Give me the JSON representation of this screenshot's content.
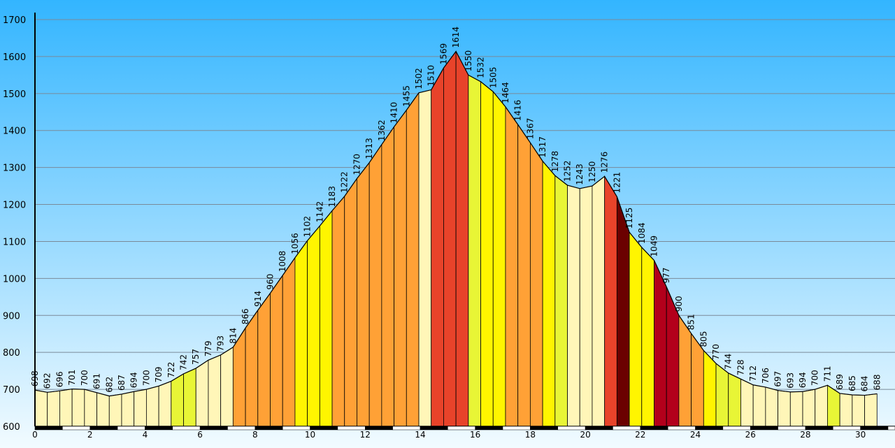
{
  "chart_data": {
    "type": "area",
    "title": "",
    "xlabel": "",
    "ylabel": "",
    "xlim": [
      0,
      31
    ],
    "ylim": [
      600,
      1700
    ],
    "grid": true,
    "y_ticks": [
      600,
      700,
      800,
      900,
      1000,
      1100,
      1200,
      1300,
      1400,
      1500,
      1600,
      1700
    ],
    "x_ticks": [
      0,
      2,
      4,
      6,
      8,
      10,
      12,
      14,
      16,
      18,
      20,
      22,
      24,
      26,
      28,
      30
    ],
    "points": [
      {
        "x": 0.0,
        "y": 698,
        "label": "698"
      },
      {
        "x": 0.45,
        "y": 692,
        "label": "692"
      },
      {
        "x": 0.9,
        "y": 696,
        "label": "696"
      },
      {
        "x": 1.35,
        "y": 701,
        "label": "701"
      },
      {
        "x": 1.8,
        "y": 700,
        "label": "700"
      },
      {
        "x": 2.25,
        "y": 691,
        "label": "691"
      },
      {
        "x": 2.7,
        "y": 682,
        "label": "682"
      },
      {
        "x": 3.15,
        "y": 687,
        "label": "687"
      },
      {
        "x": 3.6,
        "y": 694,
        "label": "694"
      },
      {
        "x": 4.05,
        "y": 700,
        "label": "700"
      },
      {
        "x": 4.5,
        "y": 709,
        "label": "709"
      },
      {
        "x": 4.95,
        "y": 722,
        "label": "722"
      },
      {
        "x": 5.4,
        "y": 742,
        "label": "742"
      },
      {
        "x": 5.85,
        "y": 757,
        "label": "757"
      },
      {
        "x": 6.3,
        "y": 779,
        "label": "779"
      },
      {
        "x": 6.75,
        "y": 793,
        "label": "793"
      },
      {
        "x": 7.2,
        "y": 814,
        "label": "814"
      },
      {
        "x": 7.65,
        "y": 866,
        "label": "866"
      },
      {
        "x": 8.1,
        "y": 914,
        "label": "914"
      },
      {
        "x": 8.55,
        "y": 960,
        "label": "960"
      },
      {
        "x": 9.0,
        "y": 1008,
        "label": "1008"
      },
      {
        "x": 9.45,
        "y": 1056,
        "label": "1056"
      },
      {
        "x": 9.9,
        "y": 1102,
        "label": "1102"
      },
      {
        "x": 10.35,
        "y": 1142,
        "label": "1142"
      },
      {
        "x": 10.8,
        "y": 1183,
        "label": "1183"
      },
      {
        "x": 11.25,
        "y": 1222,
        "label": "1222"
      },
      {
        "x": 11.7,
        "y": 1270,
        "label": "1270"
      },
      {
        "x": 12.15,
        "y": 1313,
        "label": "1313"
      },
      {
        "x": 12.6,
        "y": 1362,
        "label": "1362"
      },
      {
        "x": 13.05,
        "y": 1410,
        "label": "1410"
      },
      {
        "x": 13.5,
        "y": 1455,
        "label": "1455"
      },
      {
        "x": 13.95,
        "y": 1502,
        "label": "1502"
      },
      {
        "x": 14.4,
        "y": 1510,
        "label": "1510"
      },
      {
        "x": 14.85,
        "y": 1569,
        "label": "1569"
      },
      {
        "x": 15.3,
        "y": 1614,
        "label": "1614"
      },
      {
        "x": 15.75,
        "y": 1550,
        "label": "1550"
      },
      {
        "x": 16.2,
        "y": 1532,
        "label": "1532"
      },
      {
        "x": 16.65,
        "y": 1505,
        "label": "1505"
      },
      {
        "x": 17.1,
        "y": 1464,
        "label": "1464"
      },
      {
        "x": 17.55,
        "y": 1416,
        "label": "1416"
      },
      {
        "x": 18.0,
        "y": 1367,
        "label": "1367"
      },
      {
        "x": 18.45,
        "y": 1317,
        "label": "1317"
      },
      {
        "x": 18.9,
        "y": 1278,
        "label": "1278"
      },
      {
        "x": 19.35,
        "y": 1252,
        "label": "1252"
      },
      {
        "x": 19.8,
        "y": 1243,
        "label": "1243"
      },
      {
        "x": 20.25,
        "y": 1250,
        "label": "1250"
      },
      {
        "x": 20.7,
        "y": 1276,
        "label": "1276"
      },
      {
        "x": 21.15,
        "y": 1221,
        "label": "1221"
      },
      {
        "x": 21.6,
        "y": 1125,
        "label": "1125"
      },
      {
        "x": 22.05,
        "y": 1084,
        "label": "1084"
      },
      {
        "x": 22.5,
        "y": 1049,
        "label": "1049"
      },
      {
        "x": 22.95,
        "y": 977,
        "label": "977"
      },
      {
        "x": 23.4,
        "y": 900,
        "label": "900"
      },
      {
        "x": 23.85,
        "y": 851,
        "label": "851"
      },
      {
        "x": 24.3,
        "y": 805,
        "label": "805"
      },
      {
        "x": 24.75,
        "y": 770,
        "label": "770"
      },
      {
        "x": 25.2,
        "y": 744,
        "label": "744"
      },
      {
        "x": 25.65,
        "y": 728,
        "label": "728"
      },
      {
        "x": 26.1,
        "y": 712,
        "label": "712"
      },
      {
        "x": 26.55,
        "y": 706,
        "label": "706"
      },
      {
        "x": 27.0,
        "y": 697,
        "label": "697"
      },
      {
        "x": 27.45,
        "y": 693,
        "label": "693"
      },
      {
        "x": 27.9,
        "y": 694,
        "label": "694"
      },
      {
        "x": 28.35,
        "y": 700,
        "label": "700"
      },
      {
        "x": 28.8,
        "y": 711,
        "label": "711"
      },
      {
        "x": 29.25,
        "y": 689,
        "label": "689"
      },
      {
        "x": 29.7,
        "y": 685,
        "label": "685"
      },
      {
        "x": 30.15,
        "y": 684,
        "label": "684"
      },
      {
        "x": 30.6,
        "y": 688,
        "label": "688"
      }
    ],
    "segment_colors": [
      "#fff6b8",
      "#fff6b8",
      "#fff6b8",
      "#fff6b8",
      "#fff6b8",
      "#fff6b8",
      "#fff6b8",
      "#fff6b8",
      "#fff6b8",
      "#fff6b8",
      "#fff6b8",
      "#e8f536",
      "#e8f536",
      "#fff6b8",
      "#fff6b8",
      "#fff6b8",
      "#ffa136",
      "#ffa136",
      "#ffa136",
      "#ffa136",
      "#ffa136",
      "#fff500",
      "#fff500",
      "#fff500",
      "#ffa136",
      "#ffa136",
      "#ffa136",
      "#ffa136",
      "#ffa136",
      "#ffa136",
      "#ffa136",
      "#fff6b8",
      "#e8432a",
      "#e8432a",
      "#e8432a",
      "#e8f536",
      "#fff500",
      "#fff500",
      "#ffa136",
      "#ffa136",
      "#ffa136",
      "#fff500",
      "#e8f536",
      "#fff6b8",
      "#fff6b8",
      "#fff6b8",
      "#e8432a",
      "#6b0000",
      "#fff500",
      "#fff500",
      "#b3001b",
      "#b3001b",
      "#ffa136",
      "#ffa136",
      "#fff500",
      "#e8f536",
      "#e8f536",
      "#fff6b8",
      "#fff6b8",
      "#fff6b8",
      "#fff6b8",
      "#fff6b8",
      "#fff6b8",
      "#fff6b8",
      "#e8f536",
      "#fff6b8",
      "#fff6b8",
      "#fff6b8"
    ],
    "colors": {
      "sky_top": "#33b5ff",
      "sky_bottom": "#f2fbff",
      "grid": "#7a8a99",
      "outline": "#000000"
    }
  }
}
